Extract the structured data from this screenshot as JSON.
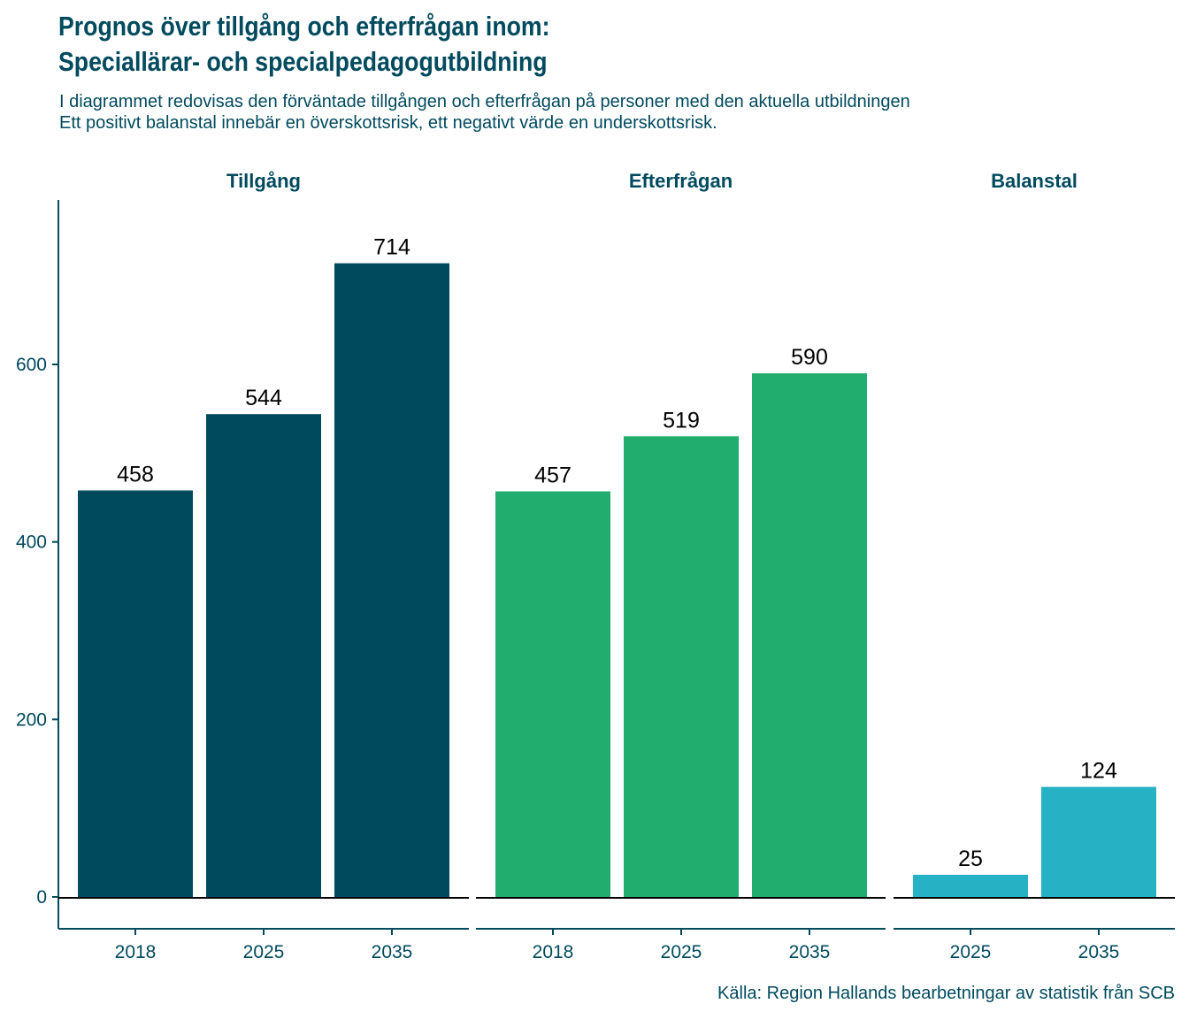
{
  "title_line1": "Prognos över tillgång och efterfrågan inom:",
  "title_line2": "Speciallärar- och specialpedagogutbildning",
  "subtitle_line1": "I diagrammet redovisas den förväntade tillgången och efterfrågan på personer med den aktuella utbildningen",
  "subtitle_line2": "Ett positivt balanstal innebär en överskottsrisk, ett negativt värde en underskottsrisk.",
  "caption": "Källa: Region Hallands bearbetningar av statistik från SCB",
  "chart_data": {
    "type": "bar",
    "title": "Prognos över tillgång och efterfrågan inom: Speciallärar- och specialpedagogutbildning",
    "xlabel": "",
    "ylabel": "",
    "ylim": [
      -36,
      780
    ],
    "yticks": [
      0,
      200,
      400,
      600
    ],
    "grid": false,
    "legend": "none",
    "facets": [
      {
        "name": "Tillgång",
        "color": "#004a5e",
        "categories": [
          "2018",
          "2025",
          "2035"
        ],
        "values": [
          458,
          544,
          714
        ]
      },
      {
        "name": "Efterfrågan",
        "color": "#21ad6e",
        "categories": [
          "2018",
          "2025",
          "2035"
        ],
        "values": [
          457,
          519,
          590
        ]
      },
      {
        "name": "Balanstal",
        "color": "#27b1c5",
        "categories": [
          "2025",
          "2035"
        ],
        "values": [
          25,
          124
        ]
      }
    ]
  }
}
